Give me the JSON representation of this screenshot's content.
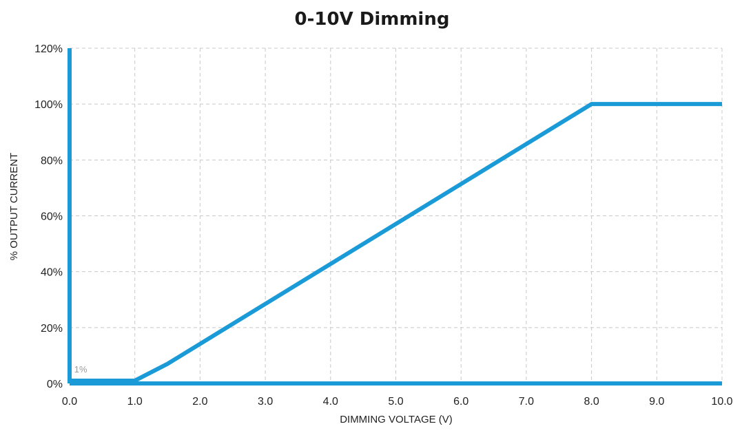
{
  "chart_data": {
    "type": "line",
    "title": "0-10V Dimming",
    "xlabel": "DIMMING VOLTAGE (V)",
    "ylabel": "% OUTPUT CURRENT",
    "xlim": [
      0,
      10
    ],
    "ylim": [
      0,
      120
    ],
    "x_ticks": [
      "0.0",
      "1.0",
      "2.0",
      "3.0",
      "4.0",
      "5.0",
      "6.0",
      "7.0",
      "8.0",
      "9.0",
      "10.0"
    ],
    "y_ticks": [
      "0%",
      "20%",
      "40%",
      "60%",
      "80%",
      "100%",
      "120%"
    ],
    "grid": true,
    "series": [
      {
        "color": "#1a9ad6",
        "x": [
          0.0,
          0.0,
          0.0,
          1.0,
          1.5,
          8.0,
          10.0
        ],
        "y": [
          120,
          0,
          1,
          1,
          7,
          100,
          100
        ]
      }
    ],
    "baseline": {
      "y": 0,
      "color": "#1a9ad6"
    },
    "annotations": [
      {
        "text": "1%",
        "x": 0.05,
        "y": 1
      }
    ]
  }
}
